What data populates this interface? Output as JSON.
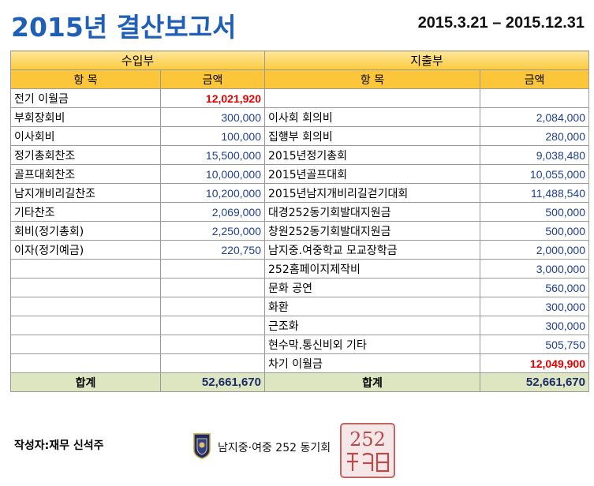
{
  "header": {
    "title": "2015년 결산보고서",
    "period": "2015.3.21 – 2015.12.31"
  },
  "sections": {
    "income": "수입부",
    "expense": "지출부"
  },
  "columns": {
    "item": "항    목",
    "amount": "금액"
  },
  "income_rows": [
    {
      "item": "전기 이월금",
      "amount": "12,021,920",
      "highlight": true
    },
    {
      "item": "부회장회비",
      "amount": "300,000"
    },
    {
      "item": "이사회비",
      "amount": "100,000"
    },
    {
      "item": "정기총회찬조",
      "amount": "15,500,000"
    },
    {
      "item": "골프대회찬조",
      "amount": "10,000,000"
    },
    {
      "item": "남지개비리길찬조",
      "amount": "10,200,000"
    },
    {
      "item": "기타찬조",
      "amount": "2,069,000"
    },
    {
      "item": "회비(정기총회)",
      "amount": "2,250,000"
    },
    {
      "item": "이자(정기예금)",
      "amount": "220,750"
    },
    {
      "item": "",
      "amount": ""
    },
    {
      "item": "",
      "amount": ""
    },
    {
      "item": "",
      "amount": ""
    },
    {
      "item": "",
      "amount": ""
    },
    {
      "item": "",
      "amount": ""
    },
    {
      "item": "",
      "amount": ""
    }
  ],
  "expense_rows": [
    {
      "item": "",
      "amount": ""
    },
    {
      "item": "이사회 회의비",
      "amount": "2,084,000"
    },
    {
      "item": "집행부 회의비",
      "amount": "280,000"
    },
    {
      "item": "2015년정기총회",
      "amount": "9,038,480"
    },
    {
      "item": "2015년골프대회",
      "amount": "10,055,000"
    },
    {
      "item": "2015년남지개비리길걷기대회",
      "amount": "11,488,540"
    },
    {
      "item": "대경252동기회발대지원금",
      "amount": "500,000"
    },
    {
      "item": "창원252동기회발대지원금",
      "amount": "500,000"
    },
    {
      "item": "남지중.여중학교 모교장학금",
      "amount": "2,000,000"
    },
    {
      "item": "252홈페이지제작비",
      "amount": "3,000,000"
    },
    {
      "item": "문화 공연",
      "amount": "560,000"
    },
    {
      "item": "화환",
      "amount": "300,000"
    },
    {
      "item": "근조화",
      "amount": "300,000"
    },
    {
      "item": "현수막.통신비외 기타",
      "amount": "505,750"
    },
    {
      "item": "차기 이월금",
      "amount": "12,049,900",
      "highlight": true
    }
  ],
  "totals": {
    "income_label": "합계",
    "income_amount": "52,661,670",
    "expense_label": "합계",
    "expense_amount": "52,661,670"
  },
  "footer": {
    "author": "작성자:재무 신석주",
    "org": "남지중·여중 252 동기회",
    "seal_text": "252"
  },
  "colors": {
    "title": "#1f5fb5",
    "section_header": "#fccb3f",
    "total_row": "#dde6c0",
    "highlight_amount": "#e00000",
    "amount": "#1f3f8f"
  }
}
